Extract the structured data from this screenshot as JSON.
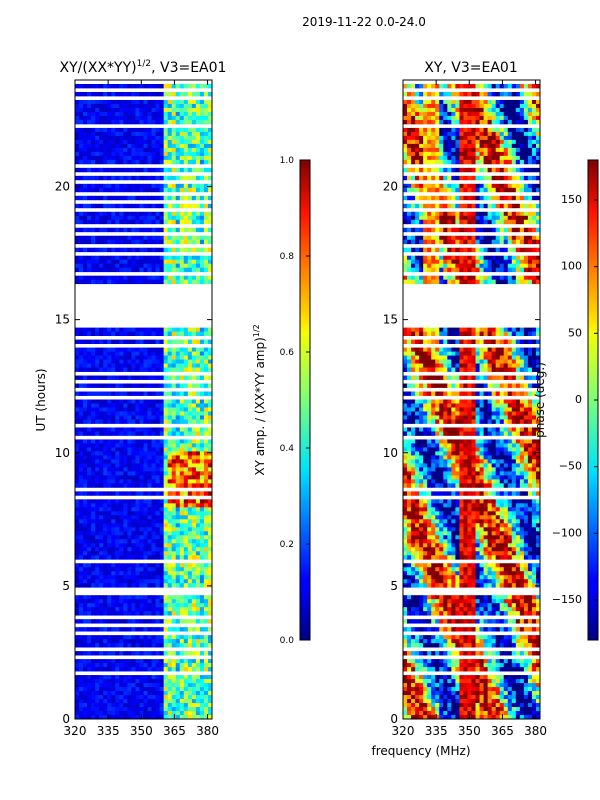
{
  "figure": {
    "suptitle": "2019-11-22 0.0-24.0",
    "xlabel": "frequency (MHz)"
  },
  "chart_data": [
    {
      "type": "heatmap",
      "title_main": "XY/(XX*YY)",
      "title_sup": "1/2",
      "title_rest": ", V3=EA01",
      "xlim": [
        320,
        382
      ],
      "ylim": [
        0,
        24
      ],
      "xticks": [
        "320",
        "335",
        "350",
        "365",
        "380"
      ],
      "xtick_values": [
        320,
        335,
        350,
        365,
        380
      ],
      "yticks": [
        "0",
        "5",
        "10",
        "15",
        "20"
      ],
      "ytick_values": [
        0,
        5,
        10,
        15,
        20
      ],
      "ylabel": "UT (hours)",
      "quantity": "amplitude",
      "bright_band_mhz": [
        360,
        382
      ],
      "cbar": {
        "range": [
          0,
          1
        ],
        "ticks": [
          "0.0",
          "0.2",
          "0.4",
          "0.6",
          "0.8",
          "1.0"
        ],
        "tick_values": [
          0,
          0.2,
          0.4,
          0.6,
          0.8,
          1.0
        ],
        "label_main": "XY amp. / (XX*YY amp)",
        "label_sup": "1/2",
        "colormap": "jet"
      }
    },
    {
      "type": "heatmap",
      "title_main": "XY, V3=EA01",
      "title_sup": "",
      "title_rest": "",
      "xlim": [
        320,
        382
      ],
      "ylim": [
        0,
        24
      ],
      "xticks": [
        "320",
        "335",
        "350",
        "365",
        "380"
      ],
      "xtick_values": [
        320,
        335,
        350,
        365,
        380
      ],
      "yticks": [
        "0",
        "5",
        "10",
        "15",
        "20"
      ],
      "ytick_values": [
        0,
        5,
        10,
        15,
        20
      ],
      "quantity": "phase",
      "cbar": {
        "range": [
          -180,
          180
        ],
        "ticks": [
          "−150",
          "−100",
          "−50",
          "0",
          "50",
          "100",
          "150"
        ],
        "tick_values": [
          -150,
          -100,
          -50,
          0,
          50,
          100,
          150
        ],
        "label_main": "phase (deg.)",
        "label_sup": "",
        "colormap": "jet"
      }
    }
  ],
  "flagged_hours": [
    [
      0.45,
      0.52
    ],
    [
      1.45,
      1.55
    ],
    [
      1.7,
      1.8
    ],
    [
      2.3,
      2.4
    ],
    [
      2.62,
      2.72
    ],
    [
      3.18,
      3.28
    ],
    [
      3.52,
      3.62
    ],
    [
      3.82,
      3.92
    ],
    [
      4.72,
      4.95
    ],
    [
      5.52,
      5.6
    ],
    [
      5.85,
      5.95
    ],
    [
      6.45,
      6.52
    ],
    [
      7.3,
      7.38
    ],
    [
      7.9,
      7.98
    ],
    [
      8.3,
      8.38
    ],
    [
      8.55,
      8.63
    ],
    [
      8.8,
      8.88
    ],
    [
      9.4,
      9.46
    ],
    [
      9.68,
      9.75
    ],
    [
      10.0,
      10.07
    ],
    [
      10.55,
      10.62
    ],
    [
      11.0,
      11.07
    ],
    [
      11.2,
      11.32
    ],
    [
      11.65,
      11.72
    ],
    [
      12.05,
      12.12
    ],
    [
      12.3,
      12.38
    ],
    [
      12.6,
      12.68
    ],
    [
      12.95,
      13.02
    ],
    [
      13.35,
      13.42
    ],
    [
      13.65,
      13.72
    ],
    [
      14.0,
      14.08
    ],
    [
      14.3,
      14.38
    ],
    [
      14.65,
      16.3
    ],
    [
      16.7,
      16.85
    ],
    [
      17.05,
      17.12
    ],
    [
      17.4,
      17.48
    ],
    [
      17.7,
      17.78
    ],
    [
      17.95,
      18.03
    ],
    [
      18.2,
      18.28
    ],
    [
      18.45,
      18.53
    ],
    [
      18.7,
      18.78
    ],
    [
      19.05,
      19.13
    ],
    [
      19.4,
      19.48
    ],
    [
      19.7,
      19.78
    ],
    [
      20.1,
      20.18
    ],
    [
      20.45,
      20.53
    ],
    [
      20.75,
      20.83
    ],
    [
      21.15,
      21.22
    ],
    [
      22.2,
      22.28
    ],
    [
      22.9,
      23.0
    ],
    [
      23.25,
      23.38
    ],
    [
      23.55,
      23.65
    ],
    [
      23.85,
      23.98
    ]
  ]
}
